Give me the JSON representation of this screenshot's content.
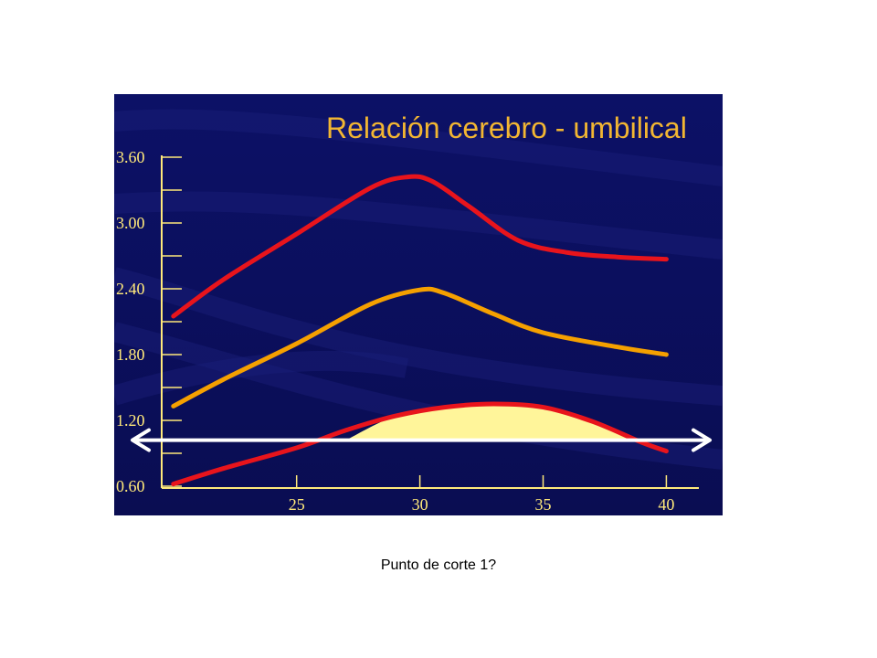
{
  "colors": {
    "background": "#0b0f5e",
    "axis": "#ffe97a",
    "title": "#f2b632",
    "upper_curve": "#e8141c",
    "median_curve": "#f5a000",
    "lower_curve": "#e8141c",
    "shaded_area": "#fff59a",
    "arrow": "#ffffff",
    "caption": "#000000"
  },
  "chart_data": {
    "type": "line",
    "title": "Relación cerebro - umbilical",
    "xlabel": "",
    "ylabel": "",
    "xlim": [
      19.6,
      40.8
    ],
    "ylim": [
      0.6,
      3.6
    ],
    "x_ticks": [
      25,
      30,
      35,
      40
    ],
    "x_tick_labels": [
      "25",
      "30",
      "35",
      "40"
    ],
    "y_ticks": [
      0.6,
      0.9,
      1.2,
      1.5,
      1.8,
      2.1,
      2.4,
      2.7,
      3.0,
      3.3,
      3.6
    ],
    "y_tick_labels": [
      "0.60",
      "",
      "1.20",
      "",
      "1.80",
      "",
      "2.40",
      "",
      "3.00",
      "",
      "3.60"
    ],
    "grid": false,
    "legend": "none",
    "series": [
      {
        "key": "upper",
        "x": [
          20,
          22,
          25,
          28,
          29.5,
          30.5,
          32,
          34,
          36,
          38,
          40
        ],
        "y": [
          2.15,
          2.48,
          2.9,
          3.32,
          3.42,
          3.38,
          3.15,
          2.84,
          2.73,
          2.69,
          2.67
        ]
      },
      {
        "key": "median",
        "x": [
          20,
          22,
          25,
          28,
          30,
          31,
          33,
          35,
          38,
          40
        ],
        "y": [
          1.33,
          1.57,
          1.9,
          2.26,
          2.39,
          2.36,
          2.17,
          2.0,
          1.87,
          1.8
        ]
      },
      {
        "key": "lower",
        "x": [
          20,
          22,
          25,
          27,
          29,
          31,
          33,
          35,
          37,
          39,
          40
        ],
        "y": [
          0.62,
          0.76,
          0.95,
          1.11,
          1.24,
          1.32,
          1.35,
          1.32,
          1.19,
          1.0,
          0.92
        ]
      }
    ],
    "shaded_region": {
      "x_from": 27,
      "x_to": 39,
      "y_base": 1.02,
      "follows_series": "lower"
    },
    "cutoff_line": {
      "y": 1.02,
      "arrow_both_ends": true
    }
  },
  "caption": "Punto de corte 1?"
}
